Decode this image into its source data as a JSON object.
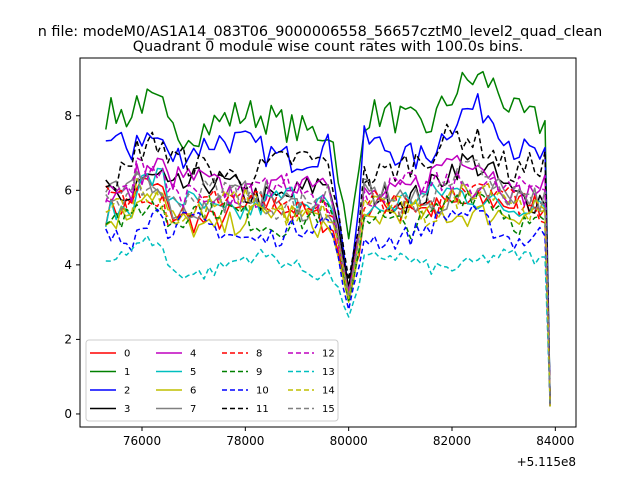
{
  "chart_data": {
    "type": "line",
    "suptitle": "n file: modeM0/AS1A14_083T06_9000006558_56657cztM0_level2_quad_clean",
    "title": "Quadrant 0 module wise count rates with 100.0s bins.",
    "xlabel": "",
    "ylabel": "",
    "x_offset_label": "+5.115e8",
    "xlim": [
      74800,
      84400
    ],
    "ylim": [
      -0.35,
      9.55
    ],
    "x_ticks": [
      76000,
      78000,
      80000,
      82000,
      84000
    ],
    "x_tick_labels": [
      "76000",
      "78000",
      "80000",
      "82000",
      "84000"
    ],
    "y_ticks": [
      0,
      2,
      4,
      6,
      8
    ],
    "y_tick_labels": [
      "0",
      "2",
      "4",
      "6",
      "8"
    ],
    "x_start": 75300,
    "x_step": 100,
    "grid": false,
    "legend": {
      "placement": "lower-left",
      "columns": 4
    },
    "series": [
      {
        "name": "0",
        "color": "#ff0000",
        "dash": "solid",
        "base": 5.4,
        "amp": 0.35,
        "dip": 3.2,
        "end": 0.3,
        "lift": 0.5
      },
      {
        "name": "1",
        "color": "#008000",
        "dash": "solid",
        "base": 7.8,
        "amp": 0.45,
        "dip": 4.7,
        "end": 0.2,
        "lift": 1.2
      },
      {
        "name": "2",
        "color": "#0000ff",
        "dash": "solid",
        "base": 7.1,
        "amp": 0.4,
        "dip": 3.3,
        "end": 0.3,
        "lift": 0.9
      },
      {
        "name": "3",
        "color": "#000000",
        "dash": "solid",
        "base": 6.0,
        "amp": 0.4,
        "dip": 3.4,
        "end": 0.3,
        "lift": 0.5
      },
      {
        "name": "4",
        "color": "#bf00bf",
        "dash": "solid",
        "base": 6.1,
        "amp": 0.35,
        "dip": 3.2,
        "end": 0.2,
        "lift": 0.7
      },
      {
        "name": "5",
        "color": "#00bfbf",
        "dash": "solid",
        "base": 5.6,
        "amp": 0.35,
        "dip": 3.1,
        "end": 0.2,
        "lift": 0.4
      },
      {
        "name": "6",
        "color": "#bfbf00",
        "dash": "solid",
        "base": 5.2,
        "amp": 0.35,
        "dip": 3.0,
        "end": 0.2,
        "lift": 0.4
      },
      {
        "name": "7",
        "color": "#808080",
        "dash": "solid",
        "base": 5.7,
        "amp": 0.35,
        "dip": 3.1,
        "end": 0.2,
        "lift": 0.4
      },
      {
        "name": "8",
        "color": "#ff0000",
        "dash": "dashed",
        "base": 5.6,
        "amp": 0.35,
        "dip": 3.2,
        "end": 0.2,
        "lift": 0.5
      },
      {
        "name": "9",
        "color": "#008000",
        "dash": "dashed",
        "base": 5.3,
        "amp": 0.35,
        "dip": 3.0,
        "end": 0.2,
        "lift": 0.4
      },
      {
        "name": "10",
        "color": "#0000ff",
        "dash": "dashed",
        "base": 4.9,
        "amp": 0.3,
        "dip": 2.8,
        "end": 0.2,
        "lift": 0.3
      },
      {
        "name": "11",
        "color": "#000000",
        "dash": "dashed",
        "base": 6.6,
        "amp": 0.4,
        "dip": 3.6,
        "end": 0.2,
        "lift": 0.9
      },
      {
        "name": "12",
        "color": "#bf00bf",
        "dash": "dashed",
        "base": 5.9,
        "amp": 0.35,
        "dip": 3.3,
        "end": 0.2,
        "lift": 0.5
      },
      {
        "name": "13",
        "color": "#00bfbf",
        "dash": "dashed",
        "base": 4.0,
        "amp": 0.2,
        "dip": 2.6,
        "end": 0.2,
        "lift": 0.2
      },
      {
        "name": "14",
        "color": "#bfbf00",
        "dash": "dashed",
        "base": 5.5,
        "amp": 0.35,
        "dip": 3.1,
        "end": 0.2,
        "lift": 0.5
      },
      {
        "name": "15",
        "color": "#808080",
        "dash": "dashed",
        "base": 5.8,
        "amp": 0.35,
        "dip": 3.2,
        "end": 0.2,
        "lift": 0.5
      }
    ]
  }
}
